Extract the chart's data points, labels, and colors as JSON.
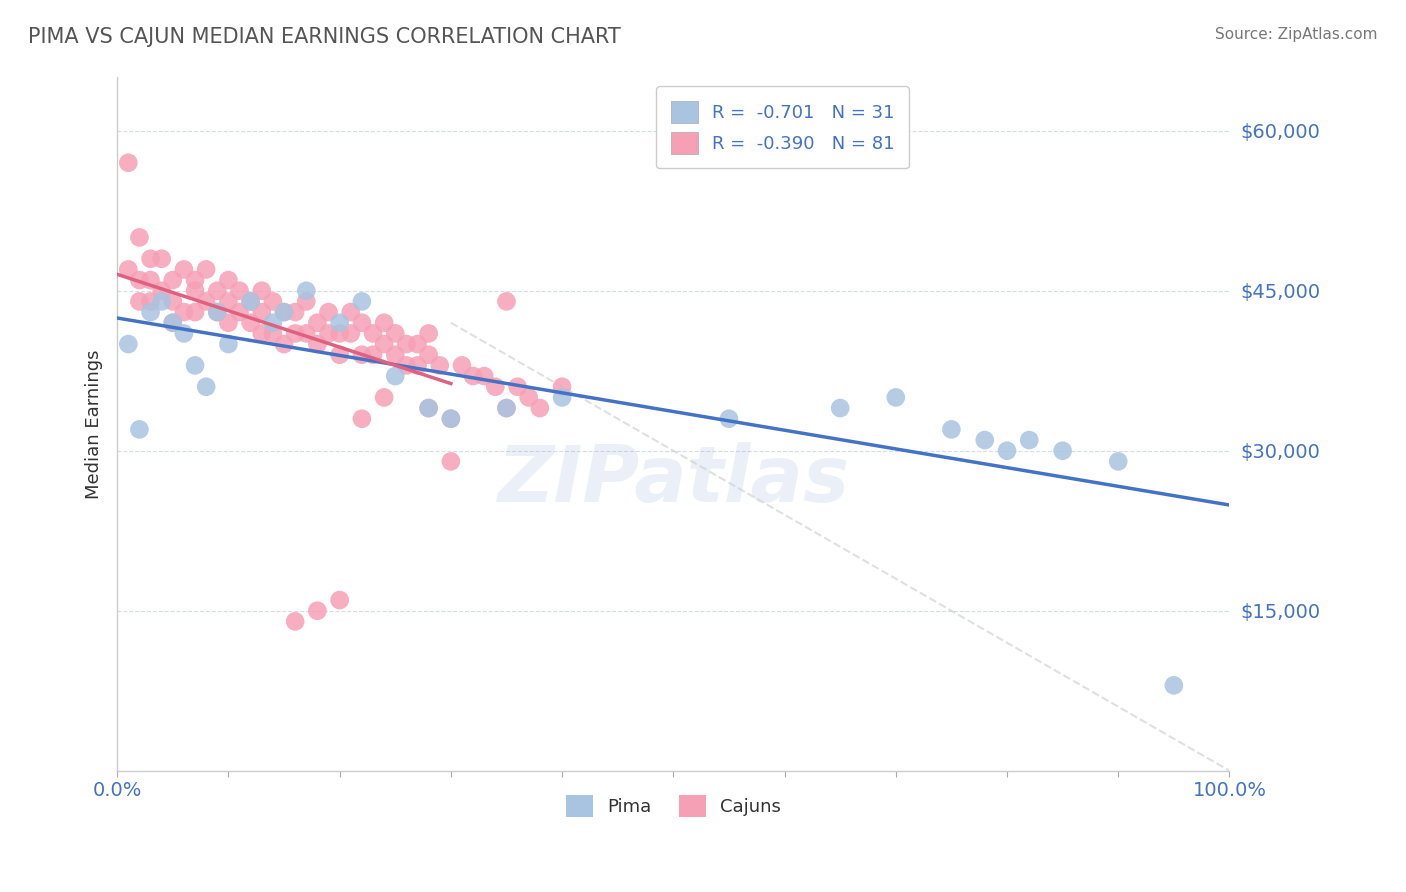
{
  "title": "PIMA VS CAJUN MEDIAN EARNINGS CORRELATION CHART",
  "source": "Source: ZipAtlas.com",
  "ylabel": "Median Earnings",
  "xlim": [
    0.0,
    1.0
  ],
  "ylim": [
    0,
    65000
  ],
  "yticks": [
    15000,
    30000,
    45000,
    60000
  ],
  "ytick_labels": [
    "$15,000",
    "$30,000",
    "$45,000",
    "$60,000"
  ],
  "legend_r_pima": "R =  -0.701   N = 31",
  "legend_r_cajun": "R =  -0.390   N = 81",
  "pima_color": "#a8c4e0",
  "cajun_color": "#f5a0b5",
  "pima_line_color": "#4472c4",
  "cajun_line_color": "#e06080",
  "title_color": "#555555",
  "axis_color": "#4472c4",
  "watermark": "ZIPatlas",
  "watermark_color": "#4472c4",
  "background_color": "#ffffff",
  "grid_color": "#d0d8e8",
  "pima_points_x": [
    0.01,
    0.02,
    0.03,
    0.04,
    0.05,
    0.06,
    0.07,
    0.08,
    0.09,
    0.1,
    0.12,
    0.14,
    0.15,
    0.17,
    0.2,
    0.22,
    0.25,
    0.28,
    0.3,
    0.35,
    0.4,
    0.55,
    0.65,
    0.7,
    0.75,
    0.78,
    0.8,
    0.82,
    0.85,
    0.9,
    0.95
  ],
  "pima_points_y": [
    40000,
    32000,
    43000,
    44000,
    42000,
    41000,
    38000,
    36000,
    43000,
    40000,
    44000,
    42000,
    43000,
    45000,
    42000,
    44000,
    37000,
    34000,
    33000,
    34000,
    35000,
    33000,
    34000,
    35000,
    32000,
    31000,
    30000,
    31000,
    30000,
    29000,
    8000
  ],
  "cajun_points_x": [
    0.01,
    0.01,
    0.02,
    0.02,
    0.02,
    0.03,
    0.03,
    0.03,
    0.04,
    0.04,
    0.05,
    0.05,
    0.05,
    0.06,
    0.06,
    0.07,
    0.07,
    0.07,
    0.08,
    0.08,
    0.09,
    0.09,
    0.1,
    0.1,
    0.1,
    0.11,
    0.11,
    0.12,
    0.12,
    0.13,
    0.13,
    0.13,
    0.14,
    0.14,
    0.15,
    0.15,
    0.16,
    0.16,
    0.17,
    0.17,
    0.18,
    0.18,
    0.19,
    0.19,
    0.2,
    0.2,
    0.21,
    0.21,
    0.22,
    0.22,
    0.23,
    0.23,
    0.24,
    0.24,
    0.25,
    0.25,
    0.26,
    0.26,
    0.27,
    0.27,
    0.28,
    0.28,
    0.29,
    0.3,
    0.31,
    0.32,
    0.33,
    0.34,
    0.35,
    0.36,
    0.37,
    0.38,
    0.4,
    0.22,
    0.24,
    0.28,
    0.3,
    0.35,
    0.2,
    0.18,
    0.16
  ],
  "cajun_points_y": [
    57000,
    47000,
    50000,
    46000,
    44000,
    48000,
    46000,
    44000,
    48000,
    45000,
    46000,
    44000,
    42000,
    47000,
    43000,
    46000,
    45000,
    43000,
    47000,
    44000,
    45000,
    43000,
    46000,
    44000,
    42000,
    45000,
    43000,
    44000,
    42000,
    45000,
    43000,
    41000,
    44000,
    41000,
    43000,
    40000,
    43000,
    41000,
    44000,
    41000,
    42000,
    40000,
    43000,
    41000,
    41000,
    39000,
    43000,
    41000,
    42000,
    39000,
    41000,
    39000,
    42000,
    40000,
    41000,
    39000,
    40000,
    38000,
    40000,
    38000,
    41000,
    39000,
    38000,
    29000,
    38000,
    37000,
    37000,
    36000,
    44000,
    36000,
    35000,
    34000,
    36000,
    33000,
    35000,
    34000,
    33000,
    34000,
    16000,
    15000,
    14000
  ]
}
